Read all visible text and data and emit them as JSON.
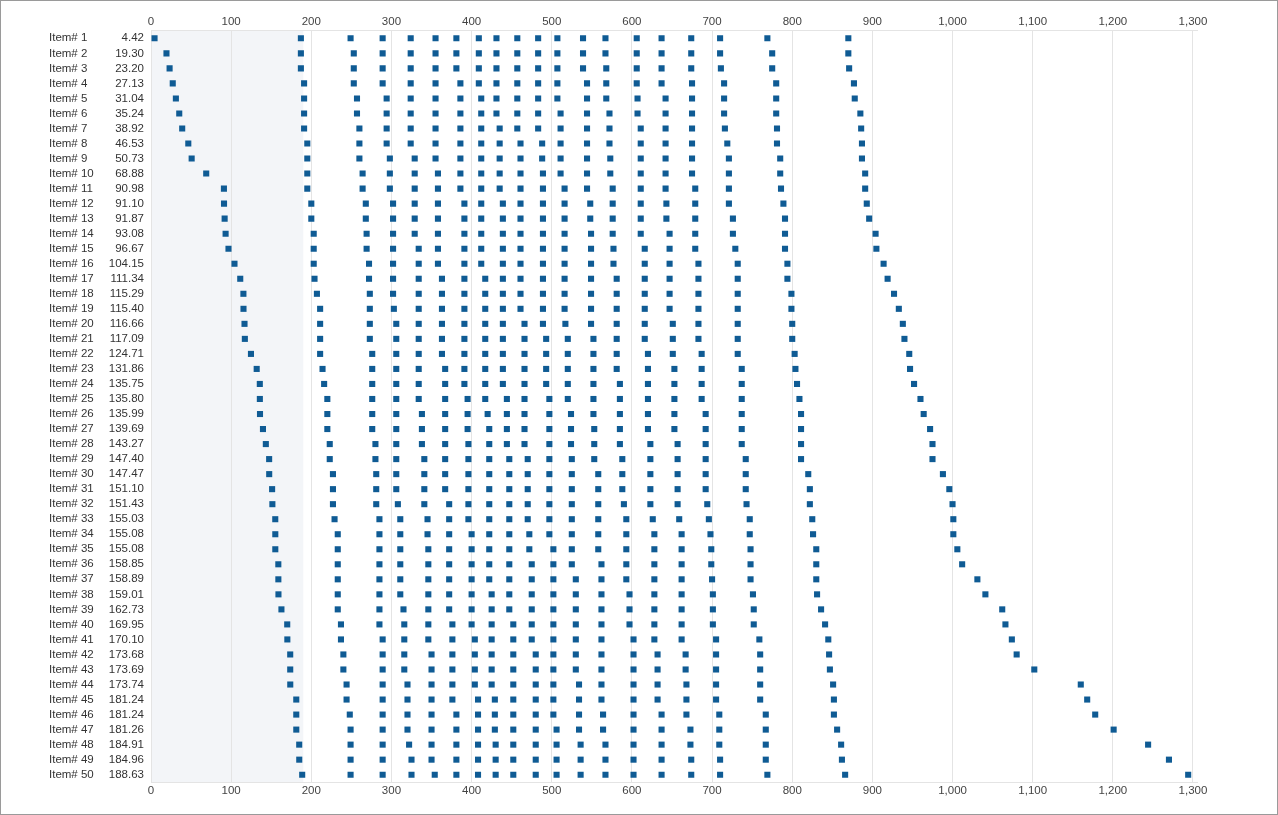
{
  "chart_data": {
    "type": "scatter",
    "xlim": [
      0,
      1305
    ],
    "xticks": [
      0,
      100,
      200,
      300,
      400,
      500,
      600,
      700,
      800,
      900,
      {
        "value": 1000,
        "label": "1,000"
      },
      {
        "value": 1100,
        "label": "1,100"
      },
      {
        "value": 1200,
        "label": "1,200"
      },
      {
        "value": 1300,
        "label": "1,300"
      }
    ],
    "x2lim": [
      0,
      1305
    ],
    "x2ticks": [
      0,
      100,
      200,
      300,
      400,
      500,
      600,
      700,
      800,
      900,
      {
        "value": 1000,
        "label": "1,000"
      },
      {
        "value": 1100,
        "label": "1,100"
      },
      {
        "value": 1200,
        "label": "1,200"
      },
      {
        "value": 1300,
        "label": "1,300"
      }
    ],
    "ylim": [
      50.5,
      0.5
    ],
    "yticks": [
      {
        "value": 1,
        "label": "Item# 1"
      },
      {
        "value": 2,
        "label": "Item# 2"
      },
      {
        "value": 3,
        "label": "Item# 3"
      },
      {
        "value": 4,
        "label": "Item# 4"
      },
      {
        "value": 5,
        "label": "Item# 5"
      },
      {
        "value": 6,
        "label": "Item# 6"
      },
      {
        "value": 7,
        "label": "Item# 7"
      },
      {
        "value": 8,
        "label": "Item# 8"
      },
      {
        "value": 9,
        "label": "Item# 9"
      },
      {
        "value": 10,
        "label": "Item# 10"
      },
      {
        "value": 11,
        "label": "Item# 11"
      },
      {
        "value": 12,
        "label": "Item# 12"
      },
      {
        "value": 13,
        "label": "Item# 13"
      },
      {
        "value": 14,
        "label": "Item# 14"
      },
      {
        "value": 15,
        "label": "Item# 15"
      },
      {
        "value": 16,
        "label": "Item# 16"
      },
      {
        "value": 17,
        "label": "Item# 17"
      },
      {
        "value": 18,
        "label": "Item# 18"
      },
      {
        "value": 19,
        "label": "Item# 19"
      },
      {
        "value": 20,
        "label": "Item# 20"
      },
      {
        "value": 21,
        "label": "Item# 21"
      },
      {
        "value": 22,
        "label": "Item# 22"
      },
      {
        "value": 23,
        "label": "Item# 23"
      },
      {
        "value": 24,
        "label": "Item# 24"
      },
      {
        "value": 25,
        "label": "Item# 25"
      },
      {
        "value": 26,
        "label": "Item# 26"
      },
      {
        "value": 27,
        "label": "Item# 27"
      },
      {
        "value": 28,
        "label": "Item# 28"
      },
      {
        "value": 29,
        "label": "Item# 29"
      },
      {
        "value": 30,
        "label": "Item# 30"
      },
      {
        "value": 31,
        "label": "Item# 31"
      },
      {
        "value": 32,
        "label": "Item# 32"
      },
      {
        "value": 33,
        "label": "Item# 33"
      },
      {
        "value": 34,
        "label": "Item# 34"
      },
      {
        "value": 35,
        "label": "Item# 35"
      },
      {
        "value": 36,
        "label": "Item# 36"
      },
      {
        "value": 37,
        "label": "Item# 37"
      },
      {
        "value": 38,
        "label": "Item# 38"
      },
      {
        "value": 39,
        "label": "Item# 39"
      },
      {
        "value": 40,
        "label": "Item# 40"
      },
      {
        "value": 41,
        "label": "Item# 41"
      },
      {
        "value": 42,
        "label": "Item# 42"
      },
      {
        "value": 43,
        "label": "Item# 43"
      },
      {
        "value": 44,
        "label": "Item# 44"
      },
      {
        "value": 45,
        "label": "Item# 45"
      },
      {
        "value": 46,
        "label": "Item# 46"
      },
      {
        "value": 47,
        "label": "Item# 47"
      },
      {
        "value": 48,
        "label": "Item# 48"
      },
      {
        "value": 49,
        "label": "Item# 49"
      },
      {
        "value": 50,
        "label": "Item# 50"
      }
    ],
    "annotations": [
      "4.42",
      "19.30",
      "23.20",
      "27.13",
      "31.04",
      "35.24",
      "38.92",
      "46.53",
      "50.73",
      "68.88",
      "90.98",
      "91.10",
      "91.87",
      "93.08",
      "96.67",
      "104.15",
      "111.34",
      "115.29",
      "115.40",
      "116.66",
      "117.09",
      "124.71",
      "131.86",
      "135.75",
      "135.80",
      "135.99",
      "139.69",
      "143.27",
      "147.40",
      "147.47",
      "151.10",
      "151.43",
      "155.03",
      "155.08",
      "155.08",
      "158.85",
      "158.89",
      "159.01",
      "162.73",
      "169.95",
      "170.10",
      "173.68",
      "173.69",
      "173.74",
      "181.24",
      "181.24",
      "181.26",
      "184.91",
      "184.96",
      "188.63"
    ],
    "marker": "square",
    "grid": "x",
    "legend": false,
    "bands": [
      {
        "axis": "x",
        "from": 0,
        "to": 190,
        "color": "#f3f5f8"
      }
    ],
    "series": [
      {
        "color": "#0f5b94",
        "x": [
          4.42,
          19.3,
          23.2,
          27.13,
          31.04,
          35.24,
          38.92,
          46.53,
          50.73,
          68.88,
          90.98,
          91.1,
          91.87,
          93.08,
          96.67,
          104.15,
          111.34,
          115.29,
          115.4,
          116.66,
          117.09,
          124.71,
          131.86,
          135.75,
          135.8,
          135.99,
          139.69,
          143.27,
          147.4,
          147.47,
          151.1,
          151.43,
          155.03,
          155.08,
          155.08,
          158.85,
          158.89,
          159.01,
          162.73,
          169.95,
          170.1,
          173.68,
          173.69,
          173.74,
          181.24,
          181.24,
          181.26,
          184.91,
          184.96,
          188.63
        ],
        "values": [
          1,
          2,
          3,
          4,
          5,
          6,
          7,
          8,
          9,
          10,
          11,
          12,
          13,
          14,
          15,
          16,
          17,
          18,
          19,
          20,
          21,
          22,
          23,
          24,
          25,
          26,
          27,
          28,
          29,
          30,
          31,
          32,
          33,
          34,
          35,
          36,
          37,
          38,
          39,
          40,
          41,
          42,
          43,
          44,
          45,
          46,
          47,
          48,
          49,
          50
        ]
      },
      {
        "color": "#0f5b94",
        "x": [
          187,
          187,
          187,
          191,
          191,
          191,
          191,
          195,
          195,
          195,
          195,
          200,
          200,
          203,
          203,
          203,
          204,
          207,
          211,
          211,
          211,
          211,
          214,
          216,
          220,
          220,
          220,
          223,
          223,
          227,
          227,
          227,
          229,
          233,
          233,
          233,
          233,
          233,
          233,
          237,
          237,
          240,
          240,
          244,
          244,
          248,
          249,
          249,
          249,
          249
        ],
        "values": [
          1,
          2,
          3,
          4,
          5,
          6,
          7,
          8,
          9,
          10,
          11,
          12,
          13,
          14,
          15,
          16,
          17,
          18,
          19,
          20,
          21,
          22,
          23,
          24,
          25,
          26,
          27,
          28,
          29,
          30,
          31,
          32,
          33,
          34,
          35,
          36,
          37,
          38,
          39,
          40,
          41,
          42,
          43,
          44,
          45,
          46,
          47,
          48,
          49,
          50
        ]
      },
      {
        "color": "#0f5b94",
        "x": [
          249,
          253,
          253,
          253,
          257,
          257,
          260,
          260,
          260,
          264,
          264,
          268,
          268,
          269,
          269,
          272,
          272,
          273,
          273,
          273,
          273,
          276,
          276,
          276,
          276,
          276,
          276,
          280,
          280,
          281,
          281,
          281,
          285,
          285,
          285,
          285,
          285,
          285,
          285,
          285,
          289,
          289,
          289,
          289,
          289,
          289,
          289,
          289,
          289,
          289
        ],
        "values": [
          1,
          2,
          3,
          4,
          5,
          6,
          7,
          8,
          9,
          10,
          11,
          12,
          13,
          14,
          15,
          16,
          17,
          18,
          19,
          20,
          21,
          22,
          23,
          24,
          25,
          26,
          27,
          28,
          29,
          30,
          31,
          32,
          33,
          34,
          35,
          36,
          37,
          38,
          39,
          40,
          41,
          42,
          43,
          44,
          45,
          46,
          47,
          48,
          49,
          50
        ]
      },
      {
        "color": "#0f5b94",
        "x": [
          289,
          289,
          289,
          289,
          294,
          294,
          294,
          294,
          298,
          298,
          298,
          302,
          302,
          302,
          302,
          302,
          302,
          302,
          303,
          306,
          306,
          306,
          306,
          306,
          306,
          306,
          306,
          306,
          306,
          306,
          306,
          308,
          311,
          311,
          311,
          311,
          311,
          311,
          315,
          316,
          316,
          316,
          316,
          320,
          320,
          320,
          320,
          322,
          325,
          325
        ],
        "values": [
          1,
          2,
          3,
          4,
          5,
          6,
          7,
          8,
          9,
          10,
          11,
          12,
          13,
          14,
          15,
          16,
          17,
          18,
          19,
          20,
          21,
          22,
          23,
          24,
          25,
          26,
          27,
          28,
          29,
          30,
          31,
          32,
          33,
          34,
          35,
          36,
          37,
          38,
          39,
          40,
          41,
          42,
          43,
          44,
          45,
          46,
          47,
          48,
          49,
          50
        ]
      },
      {
        "color": "#0f5b94",
        "x": [
          324,
          324,
          324,
          324,
          324,
          324,
          324,
          324,
          329,
          329,
          329,
          329,
          329,
          329,
          334,
          334,
          334,
          334,
          334,
          334,
          334,
          334,
          334,
          334,
          334,
          338,
          338,
          338,
          341,
          341,
          341,
          341,
          345,
          345,
          346,
          346,
          346,
          346,
          346,
          346,
          346,
          350,
          350,
          350,
          350,
          350,
          350,
          350,
          350,
          354
        ],
        "values": [
          1,
          2,
          3,
          4,
          5,
          6,
          7,
          8,
          9,
          10,
          11,
          12,
          13,
          14,
          15,
          16,
          17,
          18,
          19,
          20,
          21,
          22,
          23,
          24,
          25,
          26,
          27,
          28,
          29,
          30,
          31,
          32,
          33,
          34,
          35,
          36,
          37,
          38,
          39,
          40,
          41,
          42,
          43,
          44,
          45,
          46,
          47,
          48,
          49,
          50
        ]
      },
      {
        "color": "#0f5b94",
        "x": [
          355,
          355,
          355,
          355,
          355,
          355,
          355,
          355,
          355,
          358,
          358,
          358,
          358,
          358,
          358,
          358,
          363,
          363,
          363,
          363,
          363,
          363,
          367,
          367,
          367,
          367,
          367,
          367,
          367,
          367,
          367,
          372,
          372,
          372,
          372,
          372,
          372,
          372,
          372,
          376,
          376,
          376,
          376,
          376,
          376,
          381,
          381,
          381,
          381,
          381
        ],
        "values": [
          1,
          2,
          3,
          4,
          5,
          6,
          7,
          8,
          9,
          10,
          11,
          12,
          13,
          14,
          15,
          16,
          17,
          18,
          19,
          20,
          21,
          22,
          23,
          24,
          25,
          26,
          27,
          28,
          29,
          30,
          31,
          32,
          33,
          34,
          35,
          36,
          37,
          38,
          39,
          40,
          41,
          42,
          43,
          44,
          45,
          46,
          47,
          48,
          49,
          50
        ]
      },
      {
        "color": "#0f5b94",
        "x": [
          381,
          381,
          381,
          386,
          386,
          386,
          386,
          386,
          386,
          386,
          386,
          391,
          391,
          391,
          391,
          391,
          391,
          391,
          391,
          391,
          391,
          391,
          391,
          391,
          395,
          395,
          395,
          396,
          396,
          396,
          396,
          396,
          396,
          400,
          400,
          400,
          400,
          400,
          400,
          400,
          404,
          404,
          404,
          404,
          408,
          408,
          408,
          408,
          408,
          408
        ],
        "values": [
          1,
          2,
          3,
          4,
          5,
          6,
          7,
          8,
          9,
          10,
          11,
          12,
          13,
          14,
          15,
          16,
          17,
          18,
          19,
          20,
          21,
          22,
          23,
          24,
          25,
          26,
          27,
          28,
          29,
          30,
          31,
          32,
          33,
          34,
          35,
          36,
          37,
          38,
          39,
          40,
          41,
          42,
          43,
          44,
          45,
          46,
          47,
          48,
          49,
          50
        ]
      },
      {
        "color": "#0f5b94",
        "x": [
          409,
          409,
          409,
          409,
          412,
          412,
          412,
          412,
          412,
          412,
          412,
          412,
          412,
          412,
          412,
          412,
          417,
          417,
          417,
          417,
          417,
          417,
          417,
          417,
          417,
          420,
          422,
          422,
          422,
          422,
          422,
          422,
          422,
          422,
          422,
          422,
          422,
          425,
          425,
          425,
          425,
          425,
          425,
          425,
          429,
          429,
          429,
          430,
          430,
          430
        ],
        "values": [
          1,
          2,
          3,
          4,
          5,
          6,
          7,
          8,
          9,
          10,
          11,
          12,
          13,
          14,
          15,
          16,
          17,
          18,
          19,
          20,
          21,
          22,
          23,
          24,
          25,
          26,
          27,
          28,
          29,
          30,
          31,
          32,
          33,
          34,
          35,
          36,
          37,
          38,
          39,
          40,
          41,
          42,
          43,
          44,
          45,
          46,
          47,
          48,
          49,
          50
        ]
      },
      {
        "color": "#0f5b94",
        "x": [
          431,
          431,
          431,
          431,
          431,
          431,
          435,
          435,
          435,
          435,
          435,
          439,
          439,
          439,
          439,
          439,
          439,
          439,
          439,
          439,
          439,
          439,
          439,
          439,
          444,
          444,
          444,
          444,
          447,
          447,
          447,
          447,
          447,
          447,
          447,
          447,
          447,
          447,
          447,
          452,
          452,
          452,
          452,
          452,
          452,
          452,
          452,
          452,
          452,
          452
        ],
        "values": [
          1,
          2,
          3,
          4,
          5,
          6,
          7,
          8,
          9,
          10,
          11,
          12,
          13,
          14,
          15,
          16,
          17,
          18,
          19,
          20,
          21,
          22,
          23,
          24,
          25,
          26,
          27,
          28,
          29,
          30,
          31,
          32,
          33,
          34,
          35,
          36,
          37,
          38,
          39,
          40,
          41,
          42,
          43,
          44,
          45,
          46,
          47,
          48,
          49,
          50
        ]
      },
      {
        "color": "#0f5b94",
        "x": [
          457,
          457,
          457,
          457,
          457,
          457,
          457,
          461,
          461,
          461,
          461,
          461,
          461,
          461,
          461,
          461,
          461,
          461,
          461,
          466,
          466,
          466,
          466,
          466,
          466,
          466,
          466,
          466,
          470,
          470,
          470,
          470,
          470,
          472,
          472,
          475,
          475,
          475,
          475,
          475,
          475,
          480,
          480,
          480,
          480,
          480,
          480,
          480,
          480,
          480
        ],
        "values": [
          1,
          2,
          3,
          4,
          5,
          6,
          7,
          8,
          9,
          10,
          11,
          12,
          13,
          14,
          15,
          16,
          17,
          18,
          19,
          20,
          21,
          22,
          23,
          24,
          25,
          26,
          27,
          28,
          29,
          30,
          31,
          32,
          33,
          34,
          35,
          36,
          37,
          38,
          39,
          40,
          41,
          42,
          43,
          44,
          45,
          46,
          47,
          48,
          49,
          50
        ]
      },
      {
        "color": "#0f5b94",
        "x": [
          483,
          483,
          483,
          483,
          483,
          483,
          483,
          488,
          488,
          489,
          489,
          489,
          489,
          489,
          489,
          489,
          489,
          489,
          489,
          489,
          493,
          493,
          493,
          493,
          497,
          497,
          497,
          497,
          497,
          497,
          497,
          497,
          497,
          497,
          502,
          502,
          502,
          502,
          502,
          502,
          502,
          502,
          502,
          502,
          502,
          502,
          506,
          506,
          506,
          506
        ],
        "values": [
          1,
          2,
          3,
          4,
          5,
          6,
          7,
          8,
          9,
          10,
          11,
          12,
          13,
          14,
          15,
          16,
          17,
          18,
          19,
          20,
          21,
          22,
          23,
          24,
          25,
          26,
          27,
          28,
          29,
          30,
          31,
          32,
          33,
          34,
          35,
          36,
          37,
          38,
          39,
          40,
          41,
          42,
          43,
          44,
          45,
          46,
          47,
          48,
          49,
          50
        ]
      },
      {
        "color": "#0f5b94",
        "x": [
          507,
          507,
          507,
          507,
          507,
          511,
          511,
          511,
          511,
          511,
          516,
          516,
          516,
          516,
          516,
          516,
          516,
          516,
          516,
          517,
          520,
          520,
          520,
          520,
          520,
          524,
          524,
          524,
          525,
          525,
          525,
          525,
          525,
          525,
          525,
          525,
          530,
          530,
          530,
          530,
          530,
          530,
          530,
          534,
          534,
          534,
          534,
          536,
          536,
          536
        ],
        "values": [
          1,
          2,
          3,
          4,
          5,
          6,
          7,
          8,
          9,
          10,
          11,
          12,
          13,
          14,
          15,
          16,
          17,
          18,
          19,
          20,
          21,
          22,
          23,
          24,
          25,
          26,
          27,
          28,
          29,
          30,
          31,
          32,
          33,
          34,
          35,
          36,
          37,
          38,
          39,
          40,
          41,
          42,
          43,
          44,
          45,
          46,
          47,
          48,
          49,
          50
        ]
      },
      {
        "color": "#0f5b94",
        "x": [
          539,
          539,
          539,
          544,
          544,
          544,
          544,
          544,
          544,
          544,
          544,
          548,
          548,
          549,
          549,
          549,
          549,
          549,
          549,
          549,
          552,
          552,
          552,
          552,
          552,
          552,
          553,
          553,
          553,
          558,
          558,
          558,
          558,
          558,
          558,
          562,
          562,
          562,
          562,
          562,
          562,
          562,
          562,
          562,
          562,
          564,
          564,
          567,
          567,
          567
        ],
        "values": [
          1,
          2,
          3,
          4,
          5,
          6,
          7,
          8,
          9,
          10,
          11,
          12,
          13,
          14,
          15,
          16,
          17,
          18,
          19,
          20,
          21,
          22,
          23,
          24,
          25,
          26,
          27,
          28,
          29,
          30,
          31,
          32,
          33,
          34,
          35,
          36,
          37,
          38,
          39,
          40,
          41,
          42,
          43,
          44,
          45,
          46,
          47,
          48,
          49,
          50
        ]
      },
      {
        "color": "#0f5b94",
        "x": [
          567,
          567,
          568,
          568,
          568,
          572,
          572,
          572,
          573,
          573,
          576,
          576,
          576,
          576,
          577,
          577,
          581,
          581,
          581,
          581,
          581,
          581,
          581,
          585,
          585,
          585,
          585,
          585,
          588,
          588,
          588,
          590,
          593,
          593,
          593,
          593,
          593,
          597,
          597,
          597,
          602,
          602,
          602,
          602,
          602,
          602,
          602,
          602,
          602,
          602
        ],
        "values": [
          1,
          2,
          3,
          4,
          5,
          6,
          7,
          8,
          9,
          10,
          11,
          12,
          13,
          14,
          15,
          16,
          17,
          18,
          19,
          20,
          21,
          22,
          23,
          24,
          25,
          26,
          27,
          28,
          29,
          30,
          31,
          32,
          33,
          34,
          35,
          36,
          37,
          38,
          39,
          40,
          41,
          42,
          43,
          44,
          45,
          46,
          47,
          48,
          49,
          50
        ]
      },
      {
        "color": "#0f5b94",
        "x": [
          606,
          606,
          606,
          606,
          607,
          607,
          611,
          611,
          611,
          611,
          611,
          611,
          611,
          611,
          616,
          616,
          616,
          616,
          616,
          616,
          616,
          620,
          620,
          620,
          620,
          620,
          620,
          623,
          623,
          623,
          623,
          623,
          626,
          628,
          628,
          628,
          628,
          628,
          628,
          628,
          628,
          632,
          632,
          632,
          632,
          637,
          637,
          637,
          637,
          637
        ],
        "values": [
          1,
          2,
          3,
          4,
          5,
          6,
          7,
          8,
          9,
          10,
          11,
          12,
          13,
          14,
          15,
          16,
          17,
          18,
          19,
          20,
          21,
          22,
          23,
          24,
          25,
          26,
          27,
          28,
          29,
          30,
          31,
          32,
          33,
          34,
          35,
          36,
          37,
          38,
          39,
          40,
          41,
          42,
          43,
          44,
          45,
          46,
          47,
          48,
          49,
          50
        ]
      },
      {
        "color": "#0f5b94",
        "x": [
          637,
          637,
          637,
          637,
          642,
          642,
          642,
          642,
          642,
          642,
          642,
          643,
          643,
          647,
          647,
          647,
          647,
          647,
          647,
          651,
          651,
          651,
          653,
          653,
          653,
          653,
          653,
          657,
          657,
          657,
          657,
          657,
          659,
          662,
          662,
          662,
          662,
          662,
          662,
          662,
          662,
          667,
          667,
          668,
          668,
          668,
          673,
          673,
          674,
          674
        ],
        "values": [
          1,
          2,
          3,
          4,
          5,
          6,
          7,
          8,
          9,
          10,
          11,
          12,
          13,
          14,
          15,
          16,
          17,
          18,
          19,
          20,
          21,
          22,
          23,
          24,
          25,
          26,
          27,
          28,
          29,
          30,
          31,
          32,
          33,
          34,
          35,
          36,
          37,
          38,
          39,
          40,
          41,
          42,
          43,
          44,
          45,
          46,
          47,
          48,
          49,
          50
        ]
      },
      {
        "color": "#0f5b94",
        "x": [
          674,
          674,
          674,
          675,
          675,
          675,
          675,
          675,
          675,
          675,
          679,
          679,
          679,
          679,
          679,
          683,
          683,
          683,
          683,
          683,
          683,
          687,
          687,
          687,
          687,
          692,
          692,
          692,
          692,
          692,
          692,
          694,
          696,
          698,
          699,
          699,
          700,
          701,
          701,
          701,
          705,
          705,
          705,
          705,
          705,
          709,
          709,
          709,
          710,
          710
        ],
        "values": [
          1,
          2,
          3,
          4,
          5,
          6,
          7,
          8,
          9,
          10,
          11,
          12,
          13,
          14,
          15,
          16,
          17,
          18,
          19,
          20,
          21,
          22,
          23,
          24,
          25,
          26,
          27,
          28,
          29,
          30,
          31,
          32,
          33,
          34,
          35,
          36,
          37,
          38,
          39,
          40,
          41,
          42,
          43,
          44,
          45,
          46,
          47,
          48,
          49,
          50
        ]
      },
      {
        "color": "#0f5b94",
        "x": [
          710,
          710,
          711,
          715,
          715,
          715,
          716,
          719,
          721,
          721,
          721,
          721,
          726,
          726,
          729,
          732,
          732,
          732,
          732,
          732,
          732,
          732,
          737,
          737,
          737,
          737,
          737,
          737,
          742,
          742,
          742,
          743,
          747,
          747,
          748,
          748,
          748,
          751,
          752,
          752,
          759,
          760,
          760,
          760,
          760,
          767,
          767,
          767,
          767,
          769
        ],
        "values": [
          1,
          2,
          3,
          4,
          5,
          6,
          7,
          8,
          9,
          10,
          11,
          12,
          13,
          14,
          15,
          16,
          17,
          18,
          19,
          20,
          21,
          22,
          23,
          24,
          25,
          26,
          27,
          28,
          29,
          30,
          31,
          32,
          33,
          34,
          35,
          36,
          37,
          38,
          39,
          40,
          41,
          42,
          43,
          44,
          45,
          46,
          47,
          48,
          49,
          50
        ]
      },
      {
        "color": "#0f5b94",
        "x": [
          769,
          775,
          775,
          780,
          780,
          780,
          781,
          781,
          785,
          785,
          786,
          789,
          791,
          791,
          791,
          794,
          794,
          799,
          799,
          800,
          800,
          803,
          804,
          806,
          809,
          811,
          811,
          811,
          811,
          820,
          822,
          822,
          825,
          826,
          830,
          830,
          830,
          831,
          836,
          841,
          845,
          846,
          847,
          851,
          852,
          852,
          856,
          861,
          862,
          866
        ],
        "values": [
          1,
          2,
          3,
          4,
          5,
          6,
          7,
          8,
          9,
          10,
          11,
          12,
          13,
          14,
          15,
          16,
          17,
          18,
          19,
          20,
          21,
          22,
          23,
          24,
          25,
          26,
          27,
          28,
          29,
          30,
          31,
          32,
          33,
          34,
          35,
          36,
          37,
          38,
          39,
          40,
          41,
          42,
          43,
          44,
          45,
          46,
          47,
          48,
          49,
          50
        ]
      },
      {
        "color": "#0f5b94",
        "x": [
          870,
          870,
          871,
          877,
          878,
          885,
          886,
          887,
          887,
          891,
          891,
          893,
          896,
          904,
          905,
          914,
          919,
          927,
          933,
          938,
          940,
          946,
          947,
          952,
          960,
          964,
          972,
          975,
          975,
          988,
          996,
          1000,
          1001,
          1001,
          1006,
          1012,
          1031,
          1041,
          1062,
          1066,
          1074,
          1080,
          1102,
          1160,
          1168,
          1178,
          1201,
          1244,
          1270,
          1294
        ],
        "values": [
          1,
          2,
          3,
          4,
          5,
          6,
          7,
          8,
          9,
          10,
          11,
          12,
          13,
          14,
          15,
          16,
          17,
          18,
          19,
          20,
          21,
          22,
          23,
          24,
          25,
          26,
          27,
          28,
          29,
          30,
          31,
          32,
          33,
          34,
          35,
          36,
          37,
          38,
          39,
          40,
          41,
          42,
          43,
          44,
          45,
          46,
          47,
          48,
          49,
          50
        ]
      }
    ]
  }
}
